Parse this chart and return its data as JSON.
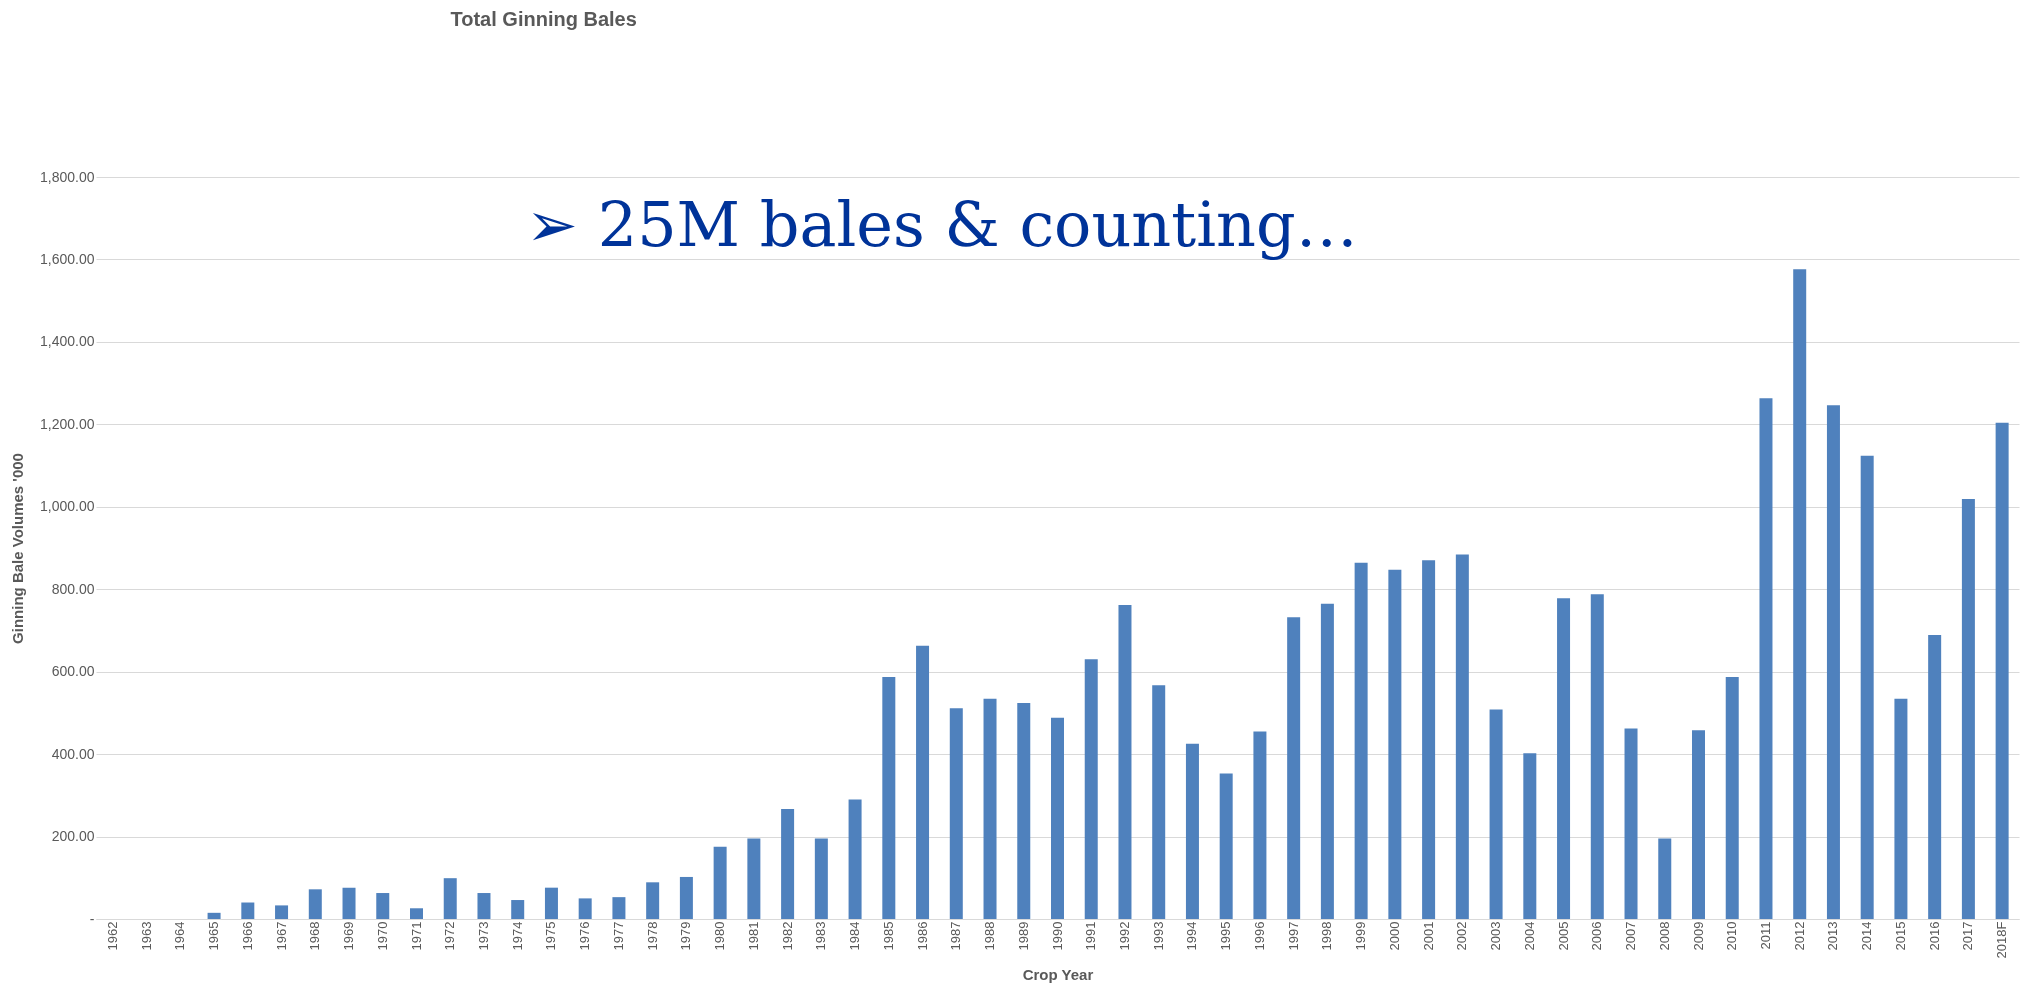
{
  "chart_data": {
    "type": "bar",
    "title": "Total Ginning Bales",
    "xlabel": "Crop Year",
    "ylabel": "Ginning Bale Volumes '000",
    "categories": [
      "1962",
      "1963",
      "1964",
      "1965",
      "1966",
      "1967",
      "1968",
      "1969",
      "1970",
      "1971",
      "1972",
      "1973",
      "1974",
      "1975",
      "1976",
      "1977",
      "1978",
      "1979",
      "1980",
      "1981",
      "1982",
      "1983",
      "1984",
      "1985",
      "1986",
      "1987",
      "1988",
      "1989",
      "1990",
      "1991",
      "1992",
      "1993",
      "1994",
      "1995",
      "1996",
      "1997",
      "1998",
      "1999",
      "2000",
      "2001",
      "2002",
      "2003",
      "2004",
      "2005",
      "2006",
      "2007",
      "2008",
      "2009",
      "2010",
      "2011",
      "2012",
      "2013",
      "2014",
      "2015",
      "2016",
      "2017",
      "2018F"
    ],
    "values": [
      0,
      0,
      0,
      15,
      40,
      33,
      72,
      76,
      63,
      26,
      99,
      63,
      46,
      76,
      50,
      53,
      89,
      102,
      175,
      195,
      267,
      195,
      290,
      587,
      663,
      511,
      534,
      524,
      488,
      630,
      762,
      567,
      425,
      353,
      455,
      732,
      765,
      864,
      847,
      870,
      884,
      508,
      402,
      778,
      788,
      462,
      195,
      458,
      587,
      1263,
      1576,
      1246,
      1124,
      534,
      689,
      1019,
      1204
    ],
    "color": "#4f81bd",
    "ylim": [
      0,
      1800
    ],
    "yticks": [
      {
        "value": 0,
        "label": "-"
      },
      {
        "value": 200,
        "label": "200.00"
      },
      {
        "value": 400,
        "label": "400.00"
      },
      {
        "value": 600,
        "label": "600.00"
      },
      {
        "value": 800,
        "label": "800.00"
      },
      {
        "value": 1000,
        "label": "1,000.00"
      },
      {
        "value": 1200,
        "label": "1,200.00"
      },
      {
        "value": 1400,
        "label": "1,400.00"
      },
      {
        "value": 1600,
        "label": "1,600.00"
      },
      {
        "value": 1800,
        "label": "1,800.00"
      }
    ],
    "grid": "y",
    "annotations": [
      "➢ 25M bales & counting…"
    ]
  }
}
